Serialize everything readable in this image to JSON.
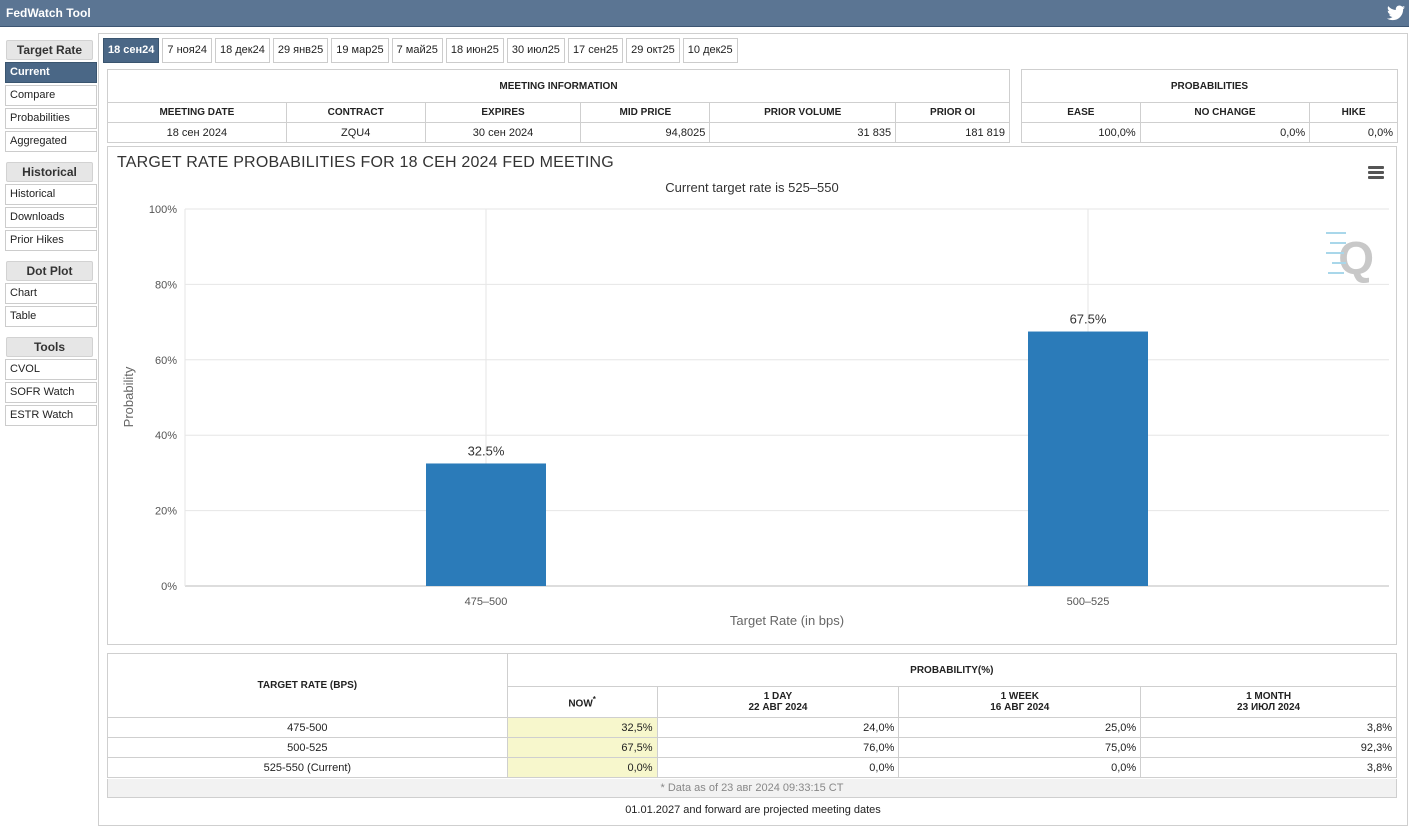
{
  "app": {
    "title": "FedWatch Tool"
  },
  "sidebar": {
    "sections": [
      {
        "heading": "Target Rate",
        "items": [
          "Current",
          "Compare",
          "Probabilities",
          "Aggregated"
        ]
      },
      {
        "heading": "Historical",
        "items": [
          "Historical",
          "Downloads",
          "Prior Hikes"
        ]
      },
      {
        "heading": "Dot Plot",
        "items": [
          "Chart",
          "Table"
        ]
      },
      {
        "heading": "Tools",
        "items": [
          "CVOL",
          "SOFR Watch",
          "ESTR Watch"
        ]
      }
    ],
    "active_item": "Current"
  },
  "tabs": [
    "18 сен24",
    "7 ноя24",
    "18 дек24",
    "29 янв25",
    "19 мар25",
    "7 май25",
    "18 июн25",
    "30 июл25",
    "17 сен25",
    "29 окт25",
    "10 дек25"
  ],
  "meeting_info": {
    "heading": "MEETING INFORMATION",
    "headers": [
      "MEETING DATE",
      "CONTRACT",
      "EXPIRES",
      "MID PRICE",
      "PRIOR VOLUME",
      "PRIOR OI"
    ],
    "values": [
      "18 сен 2024",
      "ZQU4",
      "30 сен 2024",
      "94,8025",
      "31 835",
      "181 819"
    ]
  },
  "probabilities": {
    "heading": "PROBABILITIES",
    "headers": [
      "EASE",
      "NO CHANGE",
      "HIKE"
    ],
    "values": [
      "100,0%",
      "0,0%",
      "0,0%"
    ]
  },
  "chart": {
    "title": "TARGET RATE PROBABILITIES FOR 18 СЕН 2024 FED MEETING",
    "subtitle": "Current target rate is 525–550",
    "menu_icon": "hamburger-menu-icon",
    "watermark_icon": "quikstrike-q-logo-icon",
    "bar_color": "#2b7bb9"
  },
  "chart_data": {
    "type": "bar",
    "categories": [
      "475–500",
      "500–525"
    ],
    "values": [
      32.5,
      67.5
    ],
    "data_labels": [
      "32.5%",
      "67.5%"
    ],
    "xlabel": "Target Rate (in bps)",
    "ylabel": "Probability",
    "ylim": [
      0,
      100
    ],
    "yticks": [
      "0%",
      "20%",
      "40%",
      "60%",
      "80%",
      "100%"
    ],
    "grid": true
  },
  "prob_table": {
    "rate_header": "TARGET RATE (BPS)",
    "prob_header": "PROBABILITY(%)",
    "columns": [
      {
        "line1": "NOW",
        "line2": "",
        "mark": "*"
      },
      {
        "line1": "1 DAY",
        "line2": "22 АВГ 2024"
      },
      {
        "line1": "1 WEEK",
        "line2": "16 АВГ 2024"
      },
      {
        "line1": "1 MONTH",
        "line2": "23 ИЮЛ 2024"
      }
    ],
    "rows": [
      {
        "rate": "475-500",
        "now": "32,5%",
        "day": "24,0%",
        "week": "25,0%",
        "month": "3,8%"
      },
      {
        "rate": "500-525",
        "now": "67,5%",
        "day": "76,0%",
        "week": "75,0%",
        "month": "92,3%"
      },
      {
        "rate": "525-550 (Current)",
        "now": "0,0%",
        "day": "0,0%",
        "week": "0,0%",
        "month": "3,8%"
      }
    ],
    "footnote": "* Data as of 23 авг 2024 09:33:15 CT"
  },
  "projected_note": "01.01.2027 and forward are projected meeting dates"
}
